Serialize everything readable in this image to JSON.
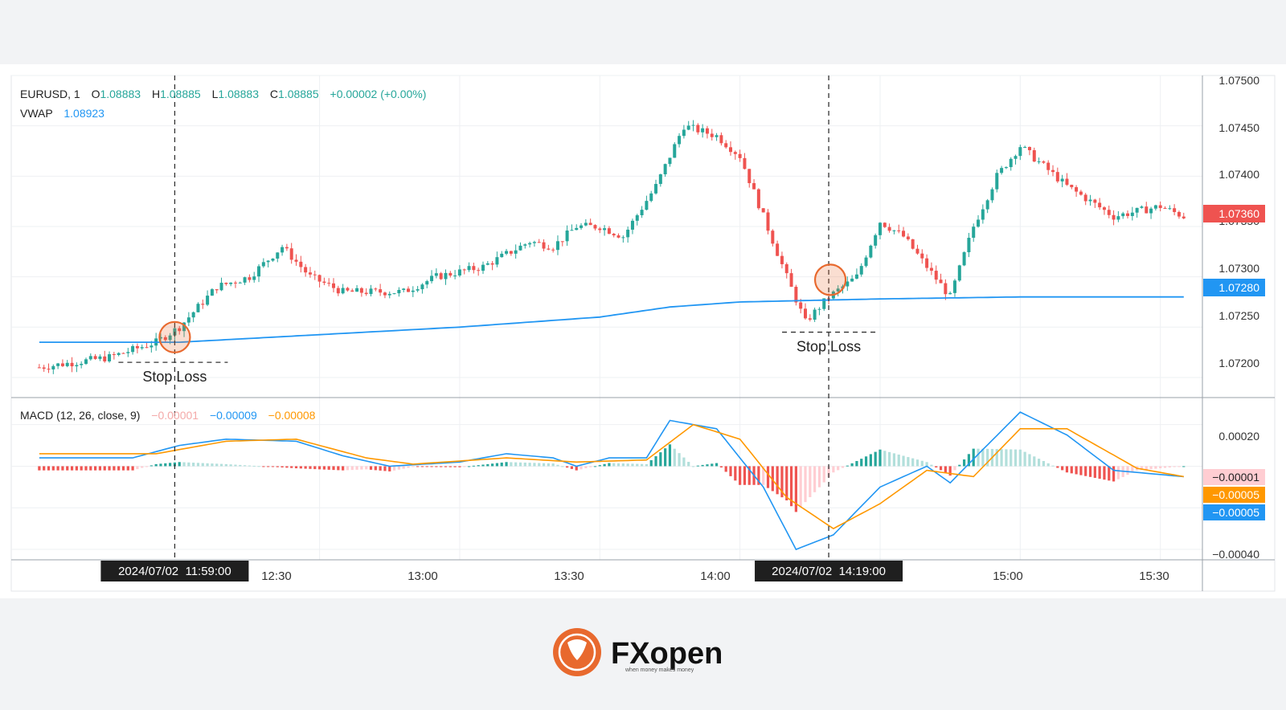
{
  "header": {
    "symbol": "EURUSD, 1",
    "o_label": "O",
    "o_value": "1.08883",
    "h_label": "H",
    "h_value": "1.08885",
    "l_label": "L",
    "l_value": "1.08883",
    "c_label": "C",
    "c_value": "1.08885",
    "change": "+0.00002 (+0.00%)",
    "vwap_label": "VWAP",
    "vwap_value": "1.08923"
  },
  "macd_header": {
    "label": "MACD (12, 26, close, 9)",
    "hist_value": "−0.00001",
    "macd_value": "−0.00009",
    "signal_value": "−0.00008"
  },
  "price_axis": {
    "ticks": [
      "1.07500",
      "1.07450",
      "1.07400",
      "1.07350",
      "1.07300",
      "1.07250",
      "1.07200"
    ],
    "current_price": "1.07360",
    "vwap_badge": "1.07280"
  },
  "macd_axis": {
    "ticks": [
      "0.00020",
      "−0.00040"
    ],
    "hist_badge": "−0.00001",
    "signal_badge": "−0.00005",
    "macd_badge": "−0.00005"
  },
  "time_axis": {
    "ticks": [
      "12:30",
      "13:00",
      "13:30",
      "14:00",
      "15:00",
      "15:30"
    ]
  },
  "annotations": {
    "entry1_time": "2024/07/02  11:59:00",
    "entry2_time": "2024/07/02  14:19:00",
    "stop1_label": "Stop Loss",
    "stop2_label": "Stop Loss"
  },
  "logo": {
    "brand": "FXopen",
    "tagline": "when money makes money"
  },
  "colors": {
    "up": "#26a69a",
    "down": "#ef5350",
    "vwap": "#2196f3",
    "macd": "#2196f3",
    "signal": "#ff9800",
    "hist_up_strong": "#26a69a",
    "hist_up_weak": "#b2dfdb",
    "hist_down_strong": "#ef5350",
    "hist_down_weak": "#ffcdd2",
    "marker": "#e8692e"
  },
  "chart_data": {
    "type": "line",
    "price_range": [
      1.0718,
      1.075
    ],
    "macd_range": [
      -0.00045,
      0.00033
    ],
    "price_path": [
      [
        "11:30",
        1.0721
      ],
      [
        "11:45",
        1.0722
      ],
      [
        "11:55",
        1.07235
      ],
      [
        "12:00",
        1.0725
      ],
      [
        "12:08",
        1.0729
      ],
      [
        "12:15",
        1.073
      ],
      [
        "12:22",
        1.0733
      ],
      [
        "12:28",
        1.073
      ],
      [
        "12:35",
        1.07285
      ],
      [
        "12:48",
        1.07285
      ],
      [
        "12:55",
        1.073
      ],
      [
        "13:05",
        1.0731
      ],
      [
        "13:15",
        1.07335
      ],
      [
        "13:20",
        1.0733
      ],
      [
        "13:25",
        1.0735
      ],
      [
        "13:30",
        1.0735
      ],
      [
        "13:35",
        1.0734
      ],
      [
        "13:42",
        1.0739
      ],
      [
        "13:48",
        1.0745
      ],
      [
        "13:55",
        1.0744
      ],
      [
        "14:00",
        1.0742
      ],
      [
        "14:05",
        1.0736
      ],
      [
        "14:10",
        1.073
      ],
      [
        "14:14",
        1.07255
      ],
      [
        "14:19",
        1.0728
      ],
      [
        "14:25",
        1.073
      ],
      [
        "14:30",
        1.07355
      ],
      [
        "14:35",
        1.0734
      ],
      [
        "14:40",
        1.0731
      ],
      [
        "14:45",
        1.0728
      ],
      [
        "14:50",
        1.0735
      ],
      [
        "14:55",
        1.074
      ],
      [
        "15:00",
        1.0743
      ],
      [
        "15:05",
        1.0741
      ],
      [
        "15:10",
        1.0739
      ],
      [
        "15:20",
        1.0736
      ],
      [
        "15:30",
        1.0737
      ],
      [
        "15:35",
        1.0736
      ]
    ],
    "vwap_path": [
      [
        "11:30",
        1.07235
      ],
      [
        "12:00",
        1.07235
      ],
      [
        "13:00",
        1.0725
      ],
      [
        "13:30",
        1.0726
      ],
      [
        "13:45",
        1.0727
      ],
      [
        "14:00",
        1.07275
      ],
      [
        "14:30",
        1.07278
      ],
      [
        "15:00",
        1.0728
      ],
      [
        "15:35",
        1.0728
      ]
    ],
    "macd_path": [
      [
        "11:30",
        4e-05
      ],
      [
        "11:50",
        4e-05
      ],
      [
        "12:00",
        0.0001
      ],
      [
        "12:10",
        0.00013
      ],
      [
        "12:25",
        0.00012
      ],
      [
        "12:35",
        5e-05
      ],
      [
        "12:45",
        0.0
      ],
      [
        "13:00",
        2e-05
      ],
      [
        "13:10",
        6e-05
      ],
      [
        "13:20",
        4e-05
      ],
      [
        "13:25",
        0.0
      ],
      [
        "13:32",
        4e-05
      ],
      [
        "13:40",
        4e-05
      ],
      [
        "13:45",
        0.00022
      ],
      [
        "13:55",
        0.00018
      ],
      [
        "14:05",
        -0.0001
      ],
      [
        "14:12",
        -0.0004
      ],
      [
        "14:20",
        -0.00033
      ],
      [
        "14:30",
        -0.0001
      ],
      [
        "14:40",
        0.0
      ],
      [
        "14:45",
        -8e-05
      ],
      [
        "14:52",
        8e-05
      ],
      [
        "15:00",
        0.00026
      ],
      [
        "15:10",
        0.00015
      ],
      [
        "15:20",
        -2e-05
      ],
      [
        "15:35",
        -5e-05
      ]
    ],
    "signal_path": [
      [
        "11:30",
        6e-05
      ],
      [
        "11:55",
        6e-05
      ],
      [
        "12:10",
        0.00012
      ],
      [
        "12:25",
        0.00013
      ],
      [
        "12:40",
        4e-05
      ],
      [
        "12:50",
        1e-05
      ],
      [
        "13:10",
        4e-05
      ],
      [
        "13:25",
        2e-05
      ],
      [
        "13:40",
        3e-05
      ],
      [
        "13:50",
        0.0002
      ],
      [
        "14:00",
        0.00013
      ],
      [
        "14:10",
        -0.00015
      ],
      [
        "14:20",
        -0.0003
      ],
      [
        "14:30",
        -0.00018
      ],
      [
        "14:40",
        -2e-05
      ],
      [
        "14:50",
        -5e-05
      ],
      [
        "15:00",
        0.00018
      ],
      [
        "15:10",
        0.00018
      ],
      [
        "15:25",
        -1e-05
      ],
      [
        "15:35",
        -5e-05
      ]
    ],
    "entries": [
      {
        "time": "11:59",
        "price": 1.07235,
        "stop_loss": 1.07215
      },
      {
        "time": "14:19",
        "price": 1.0728,
        "stop_loss": 1.07245
      }
    ]
  }
}
